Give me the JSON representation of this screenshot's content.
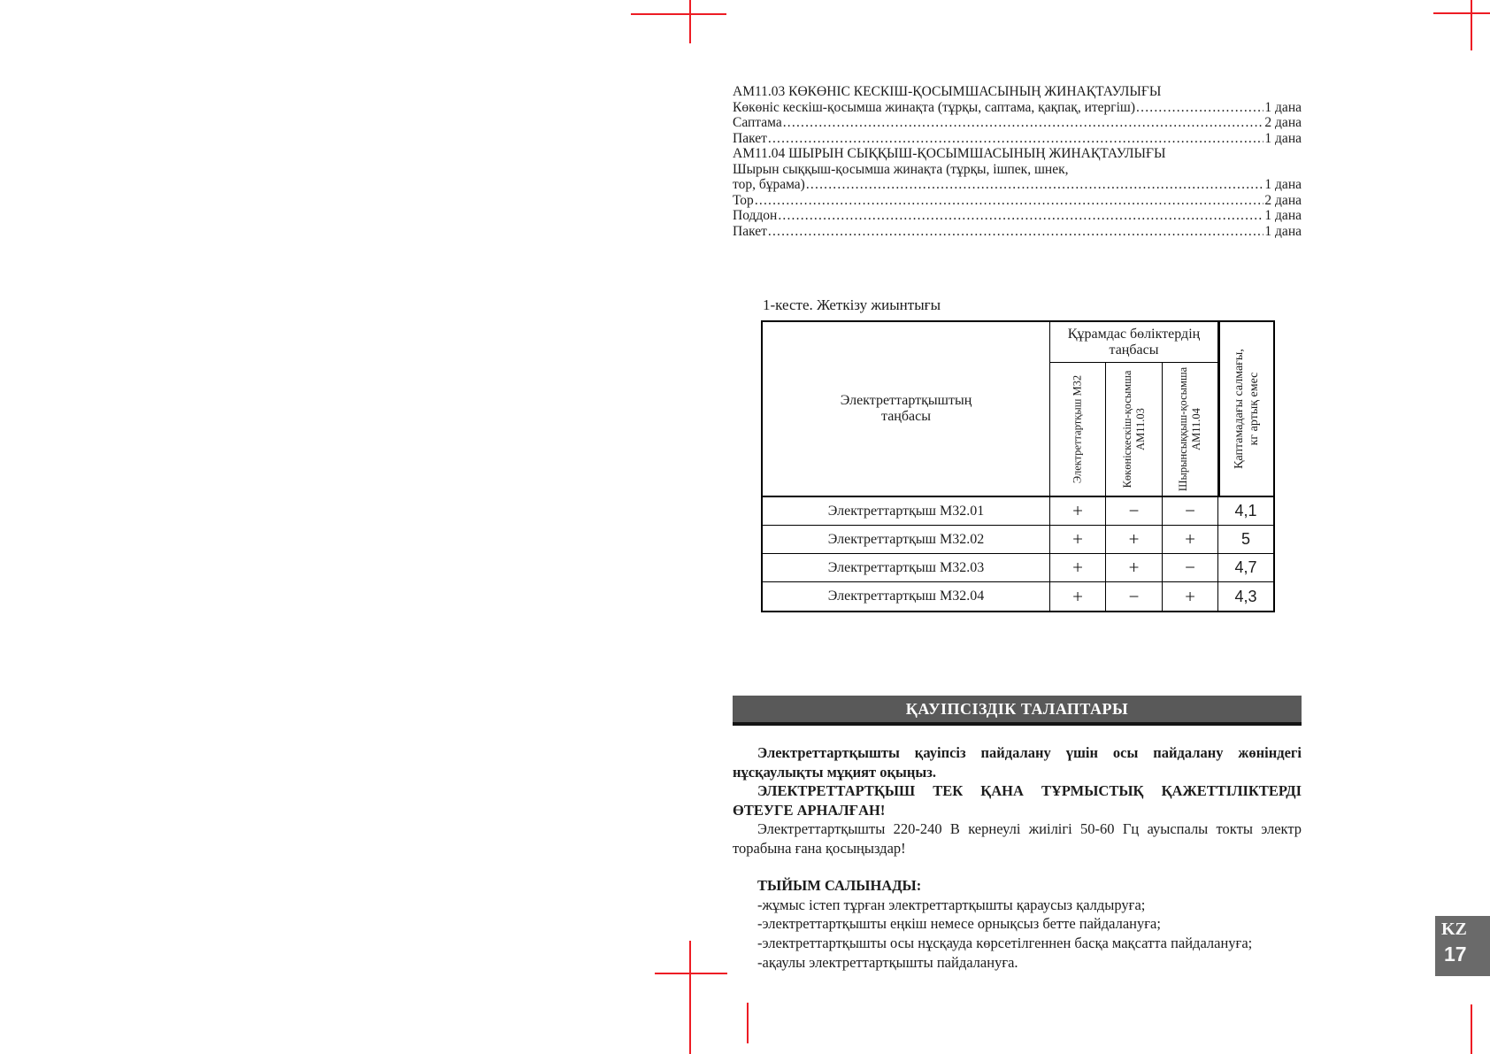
{
  "colors": {
    "crop_mark_red": "#ed1c24",
    "band_gray": "#595959",
    "badge_gray": "#6a6a6a"
  },
  "parts_list": {
    "lines": [
      {
        "type": "heading",
        "text": "АМ11.03 КӨКӨНІС КЕСКІШ-ҚОСЫМШАСЫНЫҢ ЖИНАҚТАУЛЫҒЫ"
      },
      {
        "type": "item",
        "label": "Көкөніс кескіш-қосымша жинақта (тұрқы, саптама, қақпақ, итергіш)",
        "qty": "1 дана"
      },
      {
        "type": "item",
        "label": "Саптама",
        "qty": "2 дана"
      },
      {
        "type": "item",
        "label": "Пакет",
        "qty": "1 дана"
      },
      {
        "type": "heading",
        "text": "АМ11.04 ШЫРЫН СЫҚҚЫШ-ҚОСЫМШАСЫНЫҢ ЖИНАҚТАУЛЫҒЫ"
      },
      {
        "type": "text",
        "text": "Шырын сыққыш-қосымша жинақта (тұрқы, ішпек, шнек,"
      },
      {
        "type": "item",
        "label": "тор, бұрама)",
        "qty": "1 дана"
      },
      {
        "type": "item",
        "label": "Тор",
        "qty": "2 дана"
      },
      {
        "type": "item",
        "label": "Поддон",
        "qty": "1 дана"
      },
      {
        "type": "item",
        "label": "Пакет",
        "qty": "1 дана"
      }
    ]
  },
  "table": {
    "title": "1-кесте. Жеткізу жиынтығы",
    "header": {
      "row_label": "Электреттартқыштың\nтаңбасы",
      "group_label": "Құрамдас бөліктердің\nтаңбасы",
      "columns": [
        "Электреттартқыш М32",
        "Көкөніскескіш-қосымша\nАМ11.03",
        "Шырынсыққыш-қосымша\nАМ11.04"
      ],
      "weight_label": "Қаптамадағы салмағы,\nкг артық емес"
    },
    "rows": [
      {
        "label": "Электреттартқыш М32.01",
        "marks": [
          "+",
          "−",
          "−"
        ],
        "weight": "4,1"
      },
      {
        "label": "Электреттартқыш М32.02",
        "marks": [
          "+",
          "+",
          "+"
        ],
        "weight": "5"
      },
      {
        "label": "Электреттартқыш М32.03",
        "marks": [
          "+",
          "+",
          "−"
        ],
        "weight": "4,7"
      },
      {
        "label": "Электреттартқыш М32.04",
        "marks": [
          "+",
          "−",
          "+"
        ],
        "weight": "4,3"
      }
    ]
  },
  "safety": {
    "band_title": "ҚАУІПСІЗДІК ТАЛАПТАРЫ",
    "p1": "Электреттартқышты қауіпсіз пайдалану үшін осы пайдалану жөніндегі нұсқаулықты мұқият оқыңыз.",
    "p2": "ЭЛЕКТРЕТТАРТҚЫШ ТЕК ҚАНА ТҰРМЫСТЫҚ ҚАЖЕТТІЛІКТЕРДІ ӨТЕУГЕ АРНАЛҒАН!",
    "p3": "Электреттартқышты 220-240 В кернеулі жиілігі 50-60 Гц ауыспалы токты электр торабына ғана қосыңыздар!",
    "prohibited_title": "ТЫЙЫМ САЛЫНАДЫ:",
    "prohibited_items": [
      "-жұмыс істеп тұрған электреттартқышты қараусыз қалдыруға;",
      "-электреттартқышты еңкіш немесе орнықсыз бетте пайдалануға;",
      "-электреттартқышты осы нұсқауда көрсетілгеннен басқа мақсатта пайдалануға;",
      "-ақаулы электреттартқышты пайдалануға."
    ]
  },
  "badge": {
    "lang": "KZ",
    "page_number": "17"
  }
}
